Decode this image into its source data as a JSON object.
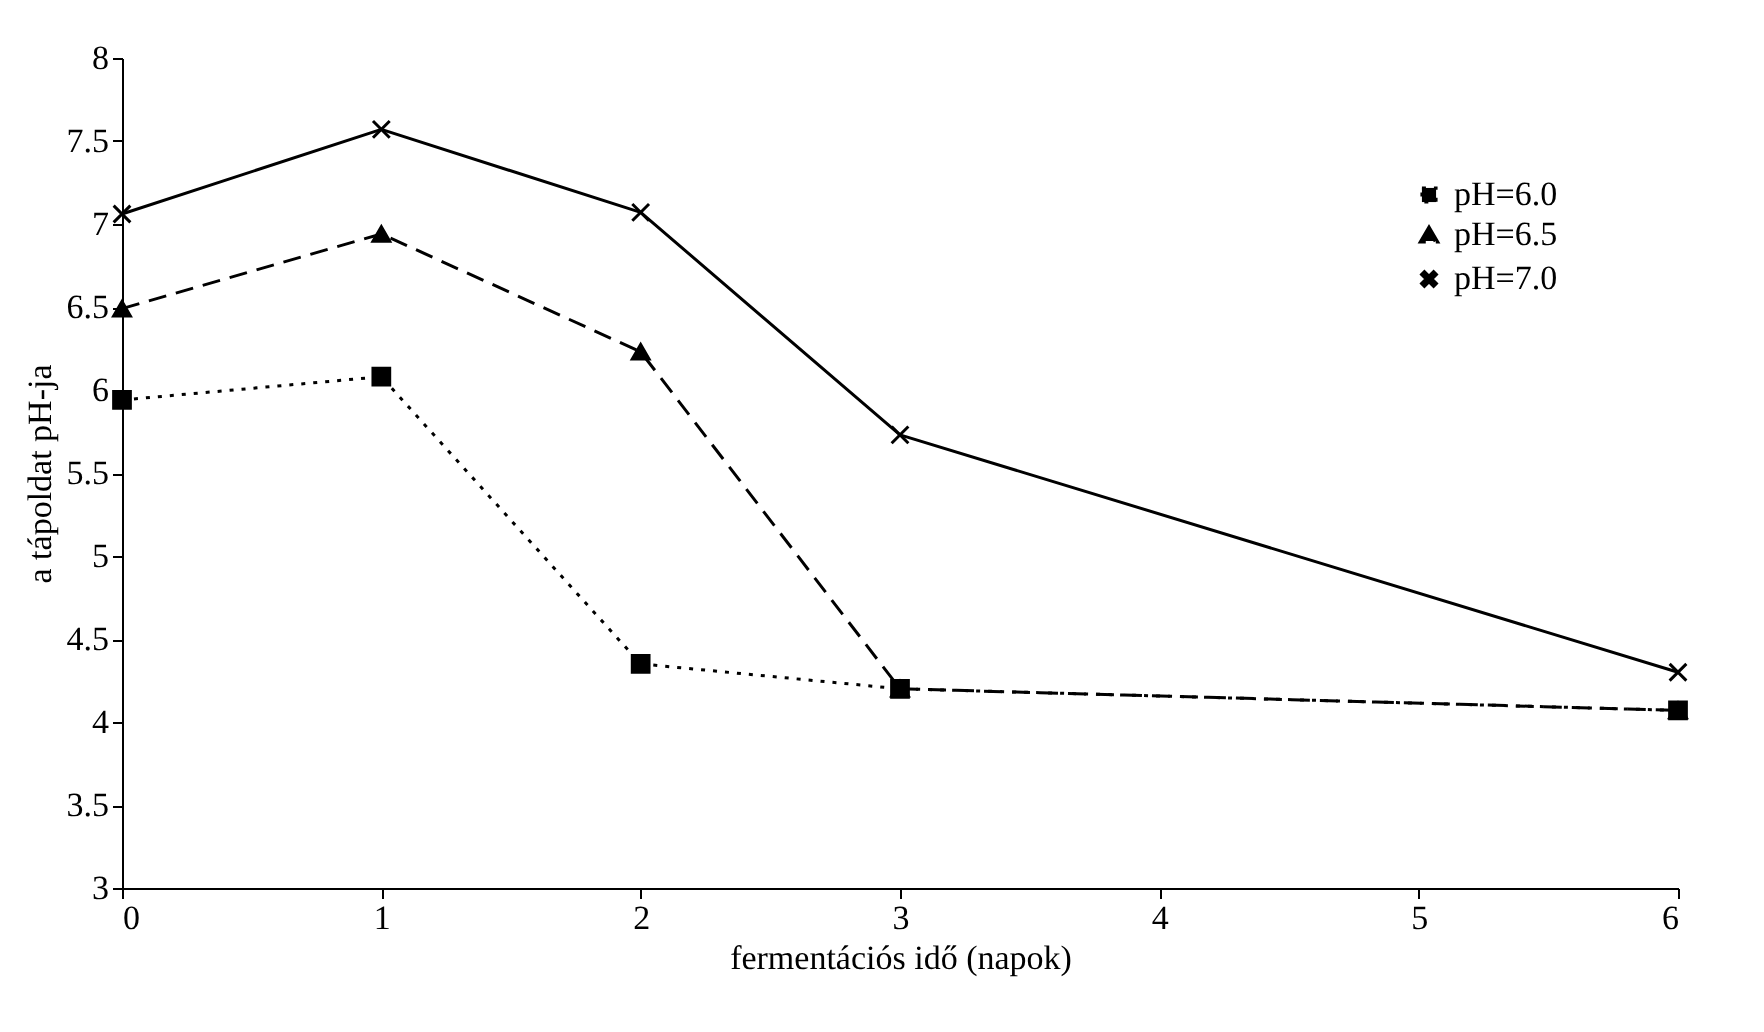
{
  "chart_data": {
    "type": "line",
    "xlabel": "fermentációs idő (napok)",
    "ylabel": "a tápoldat pH-ja",
    "x": [
      0,
      1,
      2,
      3,
      6
    ],
    "series": [
      {
        "name": "pH=6.0",
        "color": "#000000",
        "values": [
          5.94,
          6.08,
          4.35,
          4.2,
          4.07
        ],
        "line_style": "dotted",
        "marker": "square"
      },
      {
        "name": "pH=6.5",
        "color": "#000000",
        "values": [
          6.49,
          6.94,
          6.23,
          4.2,
          4.07
        ],
        "line_style": "dashed",
        "marker": "triangle"
      },
      {
        "name": "pH=7.0",
        "color": "#000000",
        "values": [
          7.06,
          7.57,
          7.07,
          5.73,
          4.3
        ],
        "line_style": "solid",
        "marker": "cross"
      }
    ],
    "xlim": [
      0,
      6
    ],
    "xticks": [
      0,
      1,
      2,
      3,
      4,
      5,
      6
    ],
    "ylim": [
      3,
      8
    ],
    "yticks": [
      3,
      3.5,
      4,
      4.5,
      5,
      5.5,
      6,
      6.5,
      7,
      7.5,
      8
    ],
    "grid": false,
    "legend": "top right"
  }
}
